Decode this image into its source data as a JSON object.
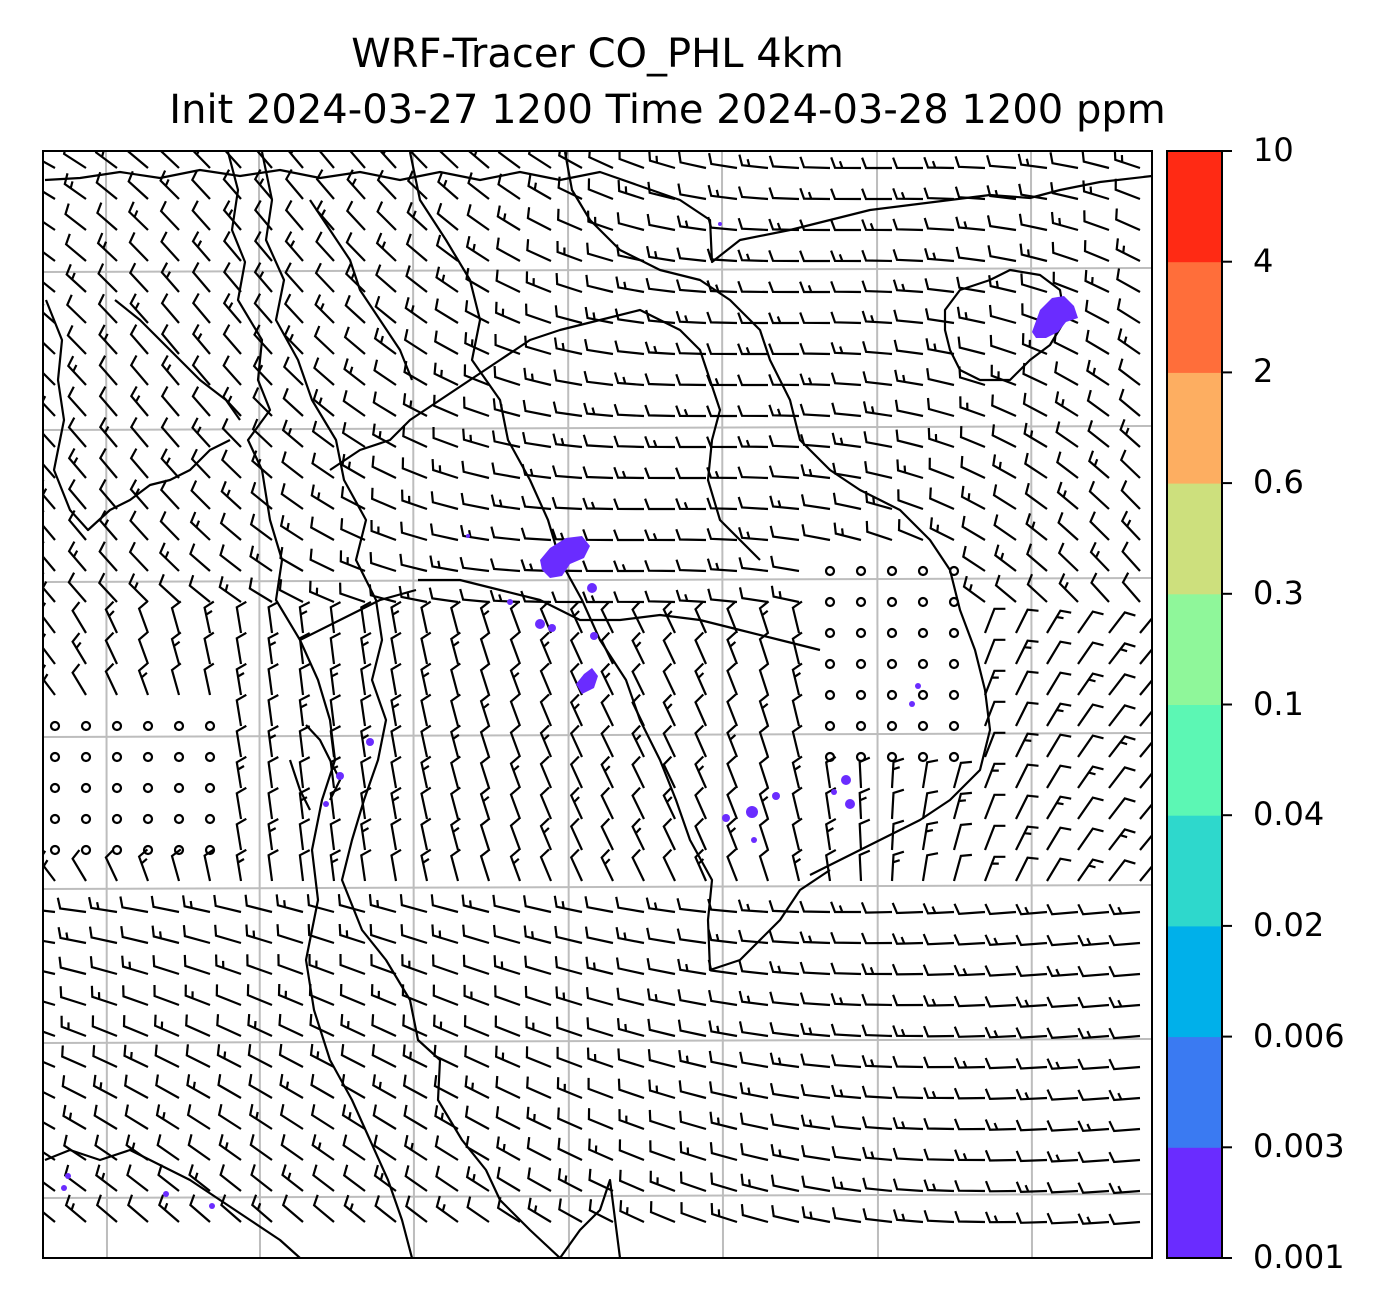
{
  "title": {
    "line1": "WRF-Tracer CO_PHL 4km",
    "line2": "Init 2024-03-27 1200 Time 2024-03-28 1200 ppm"
  },
  "colorbar": {
    "levels": [
      "0.001",
      "0.003",
      "0.006",
      "0.02",
      "0.04",
      "0.1",
      "0.3",
      "0.6",
      "2",
      "4",
      "10"
    ],
    "colors": [
      "#6a2cff",
      "#3a7af2",
      "#00b0ea",
      "#2ed8cc",
      "#5cf7b4",
      "#8ff79a",
      "#cde07d",
      "#fdae61",
      "#ff6e3a",
      "#ff2a14"
    ]
  },
  "map": {
    "plume_color": "#6a2cff",
    "grid_color": "#bdbdbd",
    "coast_color": "#000000"
  }
}
